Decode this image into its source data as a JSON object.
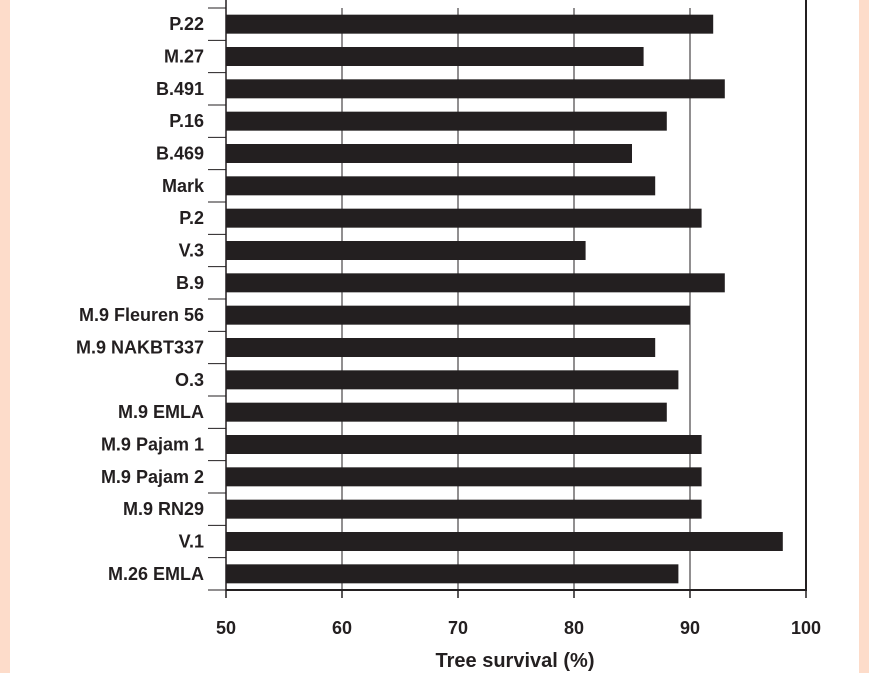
{
  "chart_data": {
    "type": "bar",
    "orientation": "horizontal",
    "categories": [
      "P.22",
      "M.27",
      "B.491",
      "P.16",
      "B.469",
      "Mark",
      "P.2",
      "V.3",
      "B.9",
      "M.9 Fleuren 56",
      "M.9 NAKBT337",
      "O.3",
      "M.9 EMLA",
      "M.9 Pajam 1",
      "M.9 Pajam 2",
      "M.9 RN29",
      "V.1",
      "M.26 EMLA"
    ],
    "values": [
      92,
      86,
      93,
      88,
      85,
      87,
      91,
      81,
      93,
      90,
      87,
      89,
      88,
      91,
      91,
      91,
      98,
      89
    ],
    "xlabel": "Tree survival (%)",
    "ylabel": "",
    "xlim": [
      50,
      100
    ],
    "xticks": [
      50,
      60,
      70,
      80,
      90,
      100
    ],
    "grid": "vertical",
    "legend": "none",
    "colors": {
      "bar": "#231f20",
      "background": "#fddcca",
      "panel": "#ffffff",
      "axis": "#231f20",
      "grid": "#231f20"
    }
  }
}
